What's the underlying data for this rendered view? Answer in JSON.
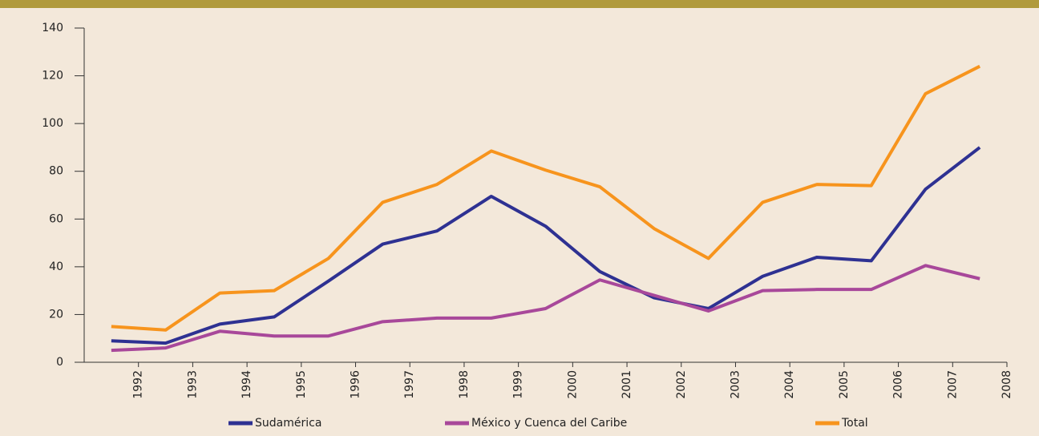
{
  "chart_data": {
    "type": "line",
    "x": [
      1991.5,
      1992.5,
      1993.5,
      1994.5,
      1995.5,
      1996.5,
      1997.5,
      1998.5,
      1999.5,
      2000.5,
      2001.5,
      2002.5,
      2003.5,
      2004.5,
      2005.5,
      2006.5,
      2007.5
    ],
    "series": [
      {
        "name": "Sudamérica",
        "color": "#2e3192",
        "values": [
          9,
          8,
          16,
          19,
          34,
          49.5,
          55,
          69.5,
          57,
          38,
          27,
          22.5,
          36,
          44,
          42.5,
          72.5,
          90
        ]
      },
      {
        "name": "México y Cuenca del Caribe",
        "color": "#a8489a",
        "values": [
          5,
          6,
          13,
          11,
          11,
          17,
          18.5,
          18.5,
          22.5,
          34.5,
          28,
          21.5,
          30,
          30.5,
          30.5,
          40.5,
          35
        ]
      },
      {
        "name": "Total",
        "color": "#f7941d",
        "values": [
          15,
          13.5,
          29,
          30,
          43.5,
          67,
          74.5,
          88.5,
          80.5,
          73.5,
          56,
          43.5,
          67,
          74.5,
          74,
          112.5,
          124
        ]
      }
    ],
    "xlim": [
      1991,
      2008
    ],
    "xticks": [
      1992,
      1993,
      1994,
      1995,
      1996,
      1997,
      1998,
      1999,
      2000,
      2001,
      2002,
      2003,
      2004,
      2005,
      2006,
      2007,
      2008
    ],
    "ylim": [
      0,
      140
    ],
    "yticks": [
      0,
      20,
      40,
      60,
      80,
      100,
      120,
      140
    ],
    "grid": false
  }
}
